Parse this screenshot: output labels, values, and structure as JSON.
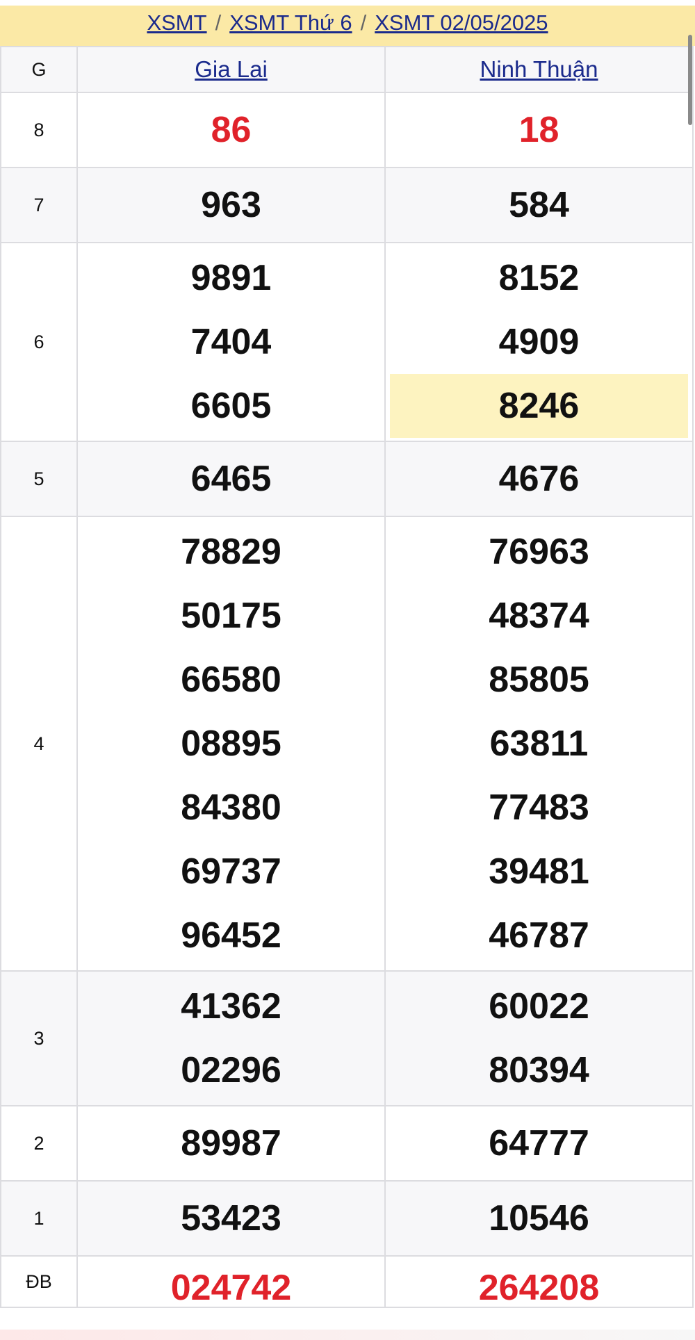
{
  "breadcrumb": [
    "XSMT",
    "XSMT Thứ 6",
    "XSMT 02/05/2025"
  ],
  "breadcrumb_separator": "/",
  "header": {
    "g": "G",
    "provinces": [
      "Gia Lai",
      "Ninh Thuận"
    ]
  },
  "rows": [
    {
      "g": "8",
      "a": [
        "86"
      ],
      "b": [
        "18"
      ],
      "red": true
    },
    {
      "g": "7",
      "a": [
        "963"
      ],
      "b": [
        "584"
      ]
    },
    {
      "g": "6",
      "a": [
        "9891",
        "7404",
        "6605"
      ],
      "b": [
        "8152",
        "4909",
        "8246"
      ]
    },
    {
      "g": "5",
      "a": [
        "6465"
      ],
      "b": [
        "4676"
      ]
    },
    {
      "g": "4",
      "a": [
        "78829",
        "50175",
        "66580",
        "08895",
        "84380",
        "69737",
        "96452"
      ],
      "b": [
        "76963",
        "48374",
        "85805",
        "63811",
        "77483",
        "39481",
        "46787"
      ]
    },
    {
      "g": "3",
      "a": [
        "41362",
        "02296"
      ],
      "b": [
        "60022",
        "80394"
      ]
    },
    {
      "g": "2",
      "a": [
        "89987"
      ],
      "b": [
        "64777"
      ]
    },
    {
      "g": "1",
      "a": [
        "53423"
      ],
      "b": [
        "10546"
      ]
    },
    {
      "g": "ĐB",
      "a": [
        "024742"
      ],
      "b": [
        "264208"
      ],
      "red": true
    }
  ],
  "highlighted": "8246",
  "colors": {
    "link": "#1a2a8c",
    "red": "#e0222a",
    "breadcrumb_bg": "#fbe9a6",
    "highlight": "#fdf3c0"
  }
}
